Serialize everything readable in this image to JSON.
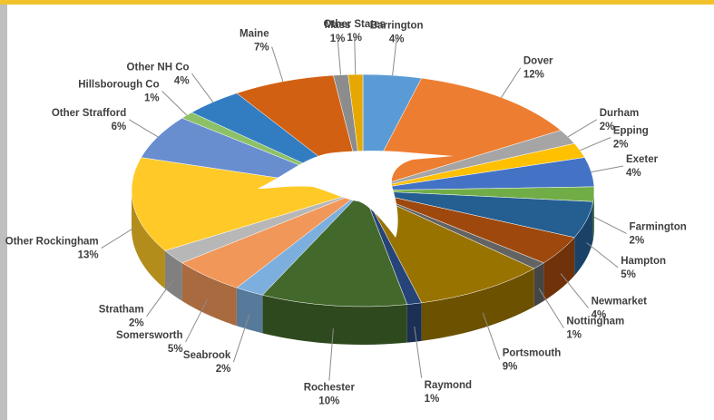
{
  "chart_data": {
    "type": "pie",
    "categories": [
      "Barrington",
      "Dover",
      "Durham",
      "Epping",
      "Exeter",
      "Farmington",
      "Hampton",
      "Newmarket",
      "Nottingham",
      "Portsmouth",
      "Raymond",
      "Rochester",
      "Seabrook",
      "Somersworth",
      "Stratham",
      "Other Rockingham",
      "Other Strafford",
      "Hillsborough Co",
      "Other NH Co",
      "Maine",
      "Mass",
      "Other States"
    ],
    "values": [
      4,
      12,
      2,
      2,
      4,
      2,
      5,
      4,
      1,
      9,
      1,
      10,
      2,
      5,
      2,
      13,
      6,
      1,
      4,
      7,
      1,
      1
    ],
    "value_labels": [
      "4%",
      "12%",
      "2%",
      "2%",
      "4%",
      "2%",
      "5%",
      "4%",
      "1%",
      "9%",
      "1%",
      "10%",
      "2%",
      "5%",
      "2%",
      "13%",
      "6%",
      "1%",
      "4%",
      "7%",
      "1%",
      "1%"
    ],
    "colors": [
      "#5b9bd5",
      "#ed7d31",
      "#a5a5a5",
      "#ffc000",
      "#4472c4",
      "#70ad47",
      "#255e91",
      "#9e480e",
      "#636363",
      "#997300",
      "#264478",
      "#43682b",
      "#7cafdd",
      "#f1975a",
      "#b7b7b7",
      "#ffca28",
      "#698ed0",
      "#8cc168",
      "#327dc2",
      "#d26012",
      "#8c8c8c",
      "#e6a800"
    ]
  }
}
